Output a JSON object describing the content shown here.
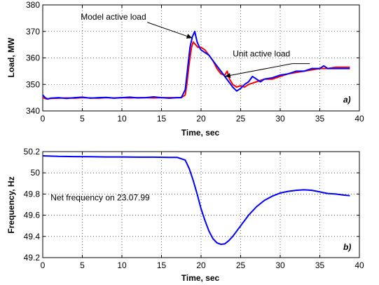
{
  "chart_data": [
    {
      "type": "line",
      "panel_label": "a)",
      "xlabel": "Time, sec",
      "ylabel": "Load, MW",
      "xlim": [
        0,
        40
      ],
      "ylim": [
        340,
        380
      ],
      "xticks": [
        0,
        5,
        10,
        15,
        20,
        25,
        30,
        35,
        40
      ],
      "yticks": [
        340,
        350,
        360,
        370,
        380
      ],
      "grid": true,
      "annotations": [
        {
          "text": "Model active load",
          "x": 4.8,
          "y": 374.5,
          "points_to": [
            18.9,
            367.5
          ]
        },
        {
          "text": "Unit active load",
          "x": 24.0,
          "y": 360.5,
          "points_to": [
            23.0,
            353.0
          ]
        }
      ],
      "series": [
        {
          "name": "Model active load",
          "color": "#ff0000",
          "x": [
            0,
            0.5,
            1,
            2,
            3,
            4,
            5,
            6,
            7,
            8,
            9,
            10,
            11,
            12,
            13,
            14,
            15,
            16,
            17,
            17.5,
            18,
            18.2,
            18.5,
            18.8,
            19,
            19.3,
            19.6,
            20,
            20.5,
            21,
            21.5,
            22,
            22.5,
            23,
            23.3,
            23.6,
            24,
            24.5,
            25,
            25.5,
            26,
            26.5,
            27,
            28,
            29,
            30,
            31,
            32,
            33,
            34,
            35,
            36,
            37,
            38,
            38.8
          ],
          "y": [
            345,
            344.5,
            344.7,
            344.8,
            344.9,
            344.8,
            345,
            344.9,
            344.8,
            345,
            344.9,
            345,
            344.9,
            345,
            345,
            344.9,
            345,
            345,
            345,
            345,
            346,
            350,
            358,
            364,
            366,
            365,
            364,
            364,
            363,
            361,
            359,
            356,
            354,
            353.5,
            355,
            352,
            350,
            349,
            349.5,
            349,
            350,
            350.5,
            351,
            352,
            352,
            353,
            354,
            354.5,
            355,
            355.5,
            356,
            356,
            356.5,
            356.5,
            356.5
          ]
        },
        {
          "name": "Unit active load",
          "color": "#0000ff",
          "x": [
            0,
            0.3,
            0.6,
            1,
            2,
            3,
            4,
            5,
            6,
            7,
            8,
            9,
            10,
            11,
            12,
            13,
            14,
            15,
            16,
            17,
            17.5,
            18,
            18.3,
            18.6,
            18.9,
            19.2,
            19.5,
            19.8,
            20,
            20.5,
            21,
            21.5,
            22,
            22.5,
            23,
            23.5,
            24,
            24.5,
            25,
            25.5,
            26,
            26.5,
            27,
            27.5,
            28,
            29,
            30,
            31,
            32,
            33,
            34,
            35,
            35.5,
            36,
            37,
            38,
            38.8
          ],
          "y": [
            346,
            345,
            344.5,
            344.8,
            345,
            344.7,
            345,
            345.2,
            344.8,
            345,
            345.1,
            344.8,
            345,
            345.2,
            344.9,
            345,
            345.3,
            345,
            344.8,
            345,
            345,
            348,
            356,
            364,
            368,
            370,
            366,
            364,
            363,
            362,
            361,
            359,
            357,
            355,
            353,
            351,
            349,
            347.5,
            348.5,
            350,
            351,
            353,
            352,
            351,
            352,
            352.5,
            353.5,
            354,
            355,
            355,
            356,
            356,
            357,
            356,
            356,
            356,
            356
          ]
        }
      ]
    },
    {
      "type": "line",
      "panel_label": "b)",
      "xlabel": "Time, sec",
      "ylabel": "Frequency, Hz",
      "xlim": [
        0,
        40
      ],
      "ylim": [
        49.2,
        50.2
      ],
      "xticks": [
        0,
        5,
        10,
        15,
        20,
        25,
        30,
        35,
        40
      ],
      "yticks": [
        49.2,
        49.4,
        49.6,
        49.8,
        50,
        50.2
      ],
      "ytick_labels": [
        "49.2",
        "49.4",
        "49.6",
        "49.8",
        "50",
        "50.2"
      ],
      "grid": true,
      "annotations": [
        {
          "text": "Net frequency on 23.07.99",
          "x": 1.0,
          "y": 49.74
        }
      ],
      "series": [
        {
          "name": "",
          "color": "#0000ff",
          "x": [
            0,
            2,
            4,
            6,
            8,
            10,
            12,
            14,
            16,
            17,
            18,
            18.5,
            19,
            19.5,
            20,
            20.5,
            21,
            21.5,
            22,
            22.5,
            23,
            23.5,
            24,
            25,
            26,
            27,
            28,
            29,
            30,
            31,
            32,
            33,
            34,
            35,
            36,
            37,
            38,
            38.8
          ],
          "y": [
            50.16,
            50.155,
            50.153,
            50.152,
            50.15,
            50.15,
            50.148,
            50.148,
            50.146,
            50.145,
            50.12,
            50.04,
            49.93,
            49.8,
            49.66,
            49.55,
            49.45,
            49.38,
            49.34,
            49.325,
            49.33,
            49.36,
            49.4,
            49.5,
            49.6,
            49.68,
            49.74,
            49.78,
            49.81,
            49.825,
            49.835,
            49.84,
            49.835,
            49.82,
            49.805,
            49.8,
            49.79,
            49.785
          ]
        }
      ]
    }
  ]
}
